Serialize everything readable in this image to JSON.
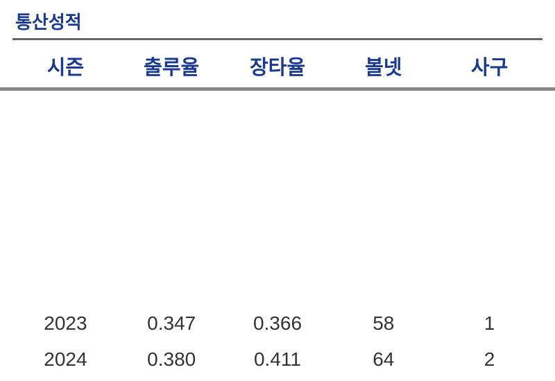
{
  "title": "통산성적",
  "columns": [
    "시즌",
    "출루율",
    "장타율",
    "볼넷",
    "사구"
  ],
  "rows": [
    [
      "2023",
      "0.347",
      "0.366",
      "58",
      "1"
    ],
    [
      "2024",
      "0.380",
      "0.411",
      "64",
      "2"
    ]
  ],
  "colors": {
    "header_text": "#1a3a8f",
    "body_text": "#333333",
    "title_underline": "#666666",
    "header_underline": "#888888",
    "background": "#ffffff"
  },
  "typography": {
    "title_fontsize": 26,
    "header_fontsize": 29,
    "cell_fontsize": 28
  }
}
